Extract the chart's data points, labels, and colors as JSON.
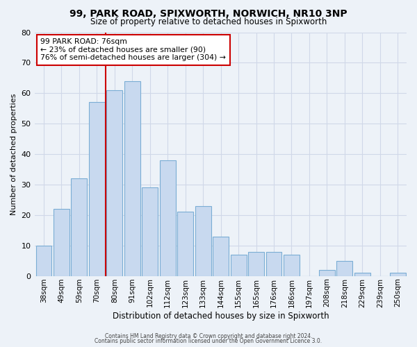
{
  "title": "99, PARK ROAD, SPIXWORTH, NORWICH, NR10 3NP",
  "subtitle": "Size of property relative to detached houses in Spixworth",
  "xlabel": "Distribution of detached houses by size in Spixworth",
  "ylabel": "Number of detached properties",
  "bar_labels": [
    "38sqm",
    "49sqm",
    "59sqm",
    "70sqm",
    "80sqm",
    "91sqm",
    "102sqm",
    "112sqm",
    "123sqm",
    "133sqm",
    "144sqm",
    "155sqm",
    "165sqm",
    "176sqm",
    "186sqm",
    "197sqm",
    "208sqm",
    "218sqm",
    "229sqm",
    "239sqm",
    "250sqm"
  ],
  "bar_values": [
    10,
    22,
    32,
    57,
    61,
    64,
    29,
    38,
    21,
    23,
    13,
    7,
    8,
    8,
    7,
    0,
    2,
    5,
    1,
    0,
    1
  ],
  "bar_color": "#c8d9ef",
  "bar_edge_color": "#7aadd4",
  "property_label": "99 PARK ROAD: 76sqm",
  "annotation_line1": "← 23% of detached houses are smaller (90)",
  "annotation_line2": "76% of semi-detached houses are larger (304) →",
  "annotation_box_color": "#ffffff",
  "annotation_box_edge": "#cc0000",
  "property_line_color": "#cc0000",
  "property_line_x": 3.5,
  "ylim": [
    0,
    80
  ],
  "yticks": [
    0,
    10,
    20,
    30,
    40,
    50,
    60,
    70,
    80
  ],
  "grid_color": "#d0d8e8",
  "background_color": "#edf2f8",
  "footer_line1": "Contains HM Land Registry data © Crown copyright and database right 2024.",
  "footer_line2": "Contains public sector information licensed under the Open Government Licence 3.0."
}
